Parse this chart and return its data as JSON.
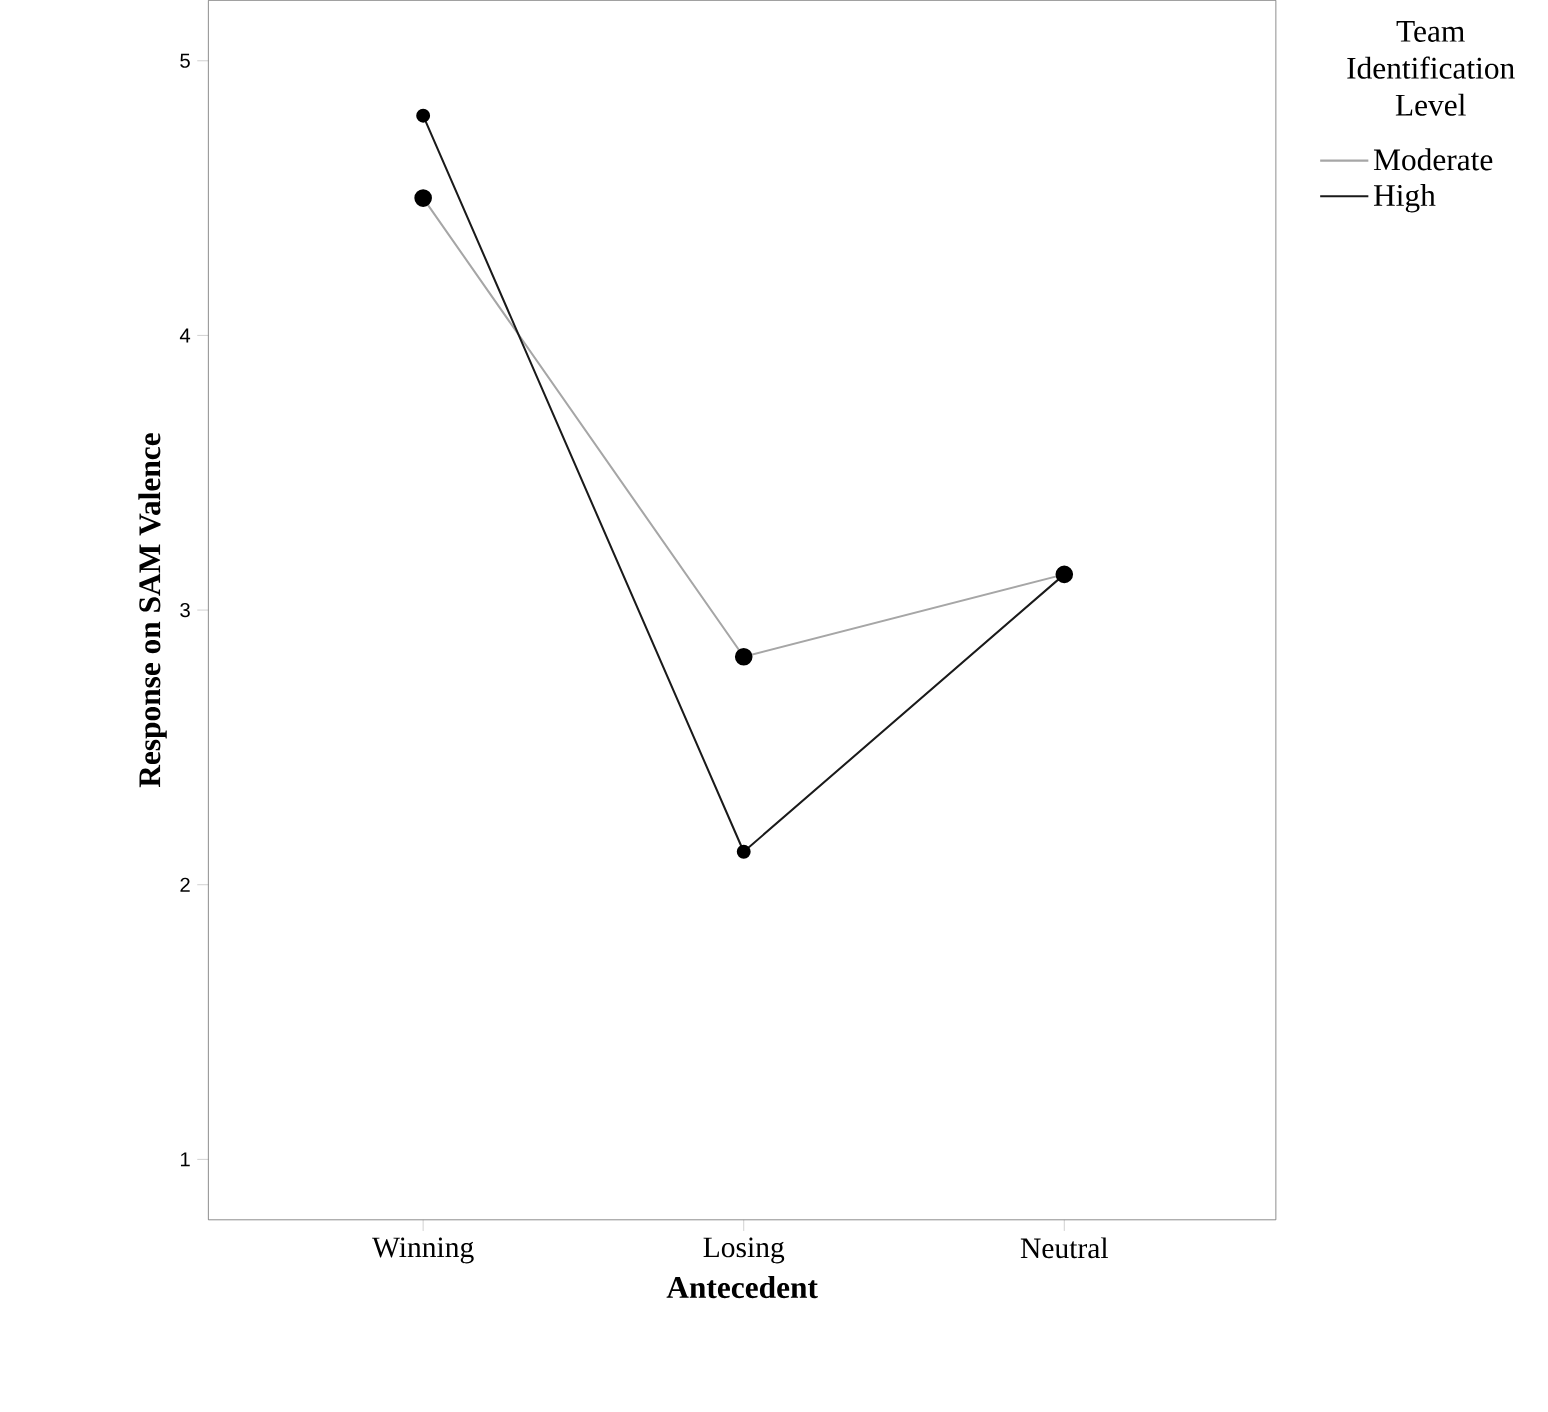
{
  "chart_data": {
    "type": "line",
    "xlabel": "Antecedent",
    "ylabel": "Response on SAM Valence",
    "legend_title": "Team Identification Level",
    "categories": [
      "Winning",
      "Losing",
      "Neutral"
    ],
    "series": [
      {
        "name": "Moderate",
        "color": "#a6a6a6",
        "values": [
          4.5,
          2.83,
          3.13
        ]
      },
      {
        "name": "High",
        "color": "#1a1a1a",
        "values": [
          4.8,
          2.12,
          3.13
        ]
      }
    ],
    "ylim": [
      0.78,
      5.22
    ],
    "yticks": [
      1,
      2,
      3,
      4,
      5
    ],
    "grid": false,
    "legend": "right",
    "marker": "circle",
    "line_style": "solid"
  }
}
